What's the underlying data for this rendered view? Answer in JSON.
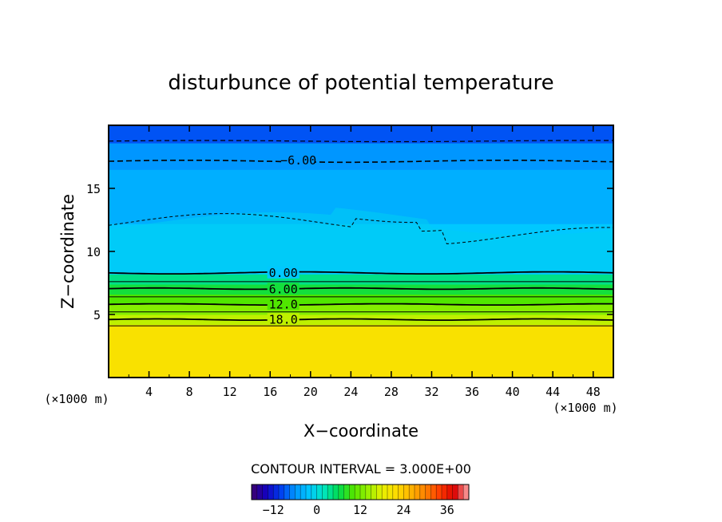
{
  "chart_data": {
    "type": "heatmap",
    "title": "disturbunce of potential temperature",
    "xlabel": "X−coordinate",
    "ylabel": "Z−coordinate",
    "x_unit": "(×1000 m)",
    "y_unit": "(×1000 m)",
    "xlim": [
      0,
      50
    ],
    "ylim": [
      0,
      20
    ],
    "x_ticks": [
      "4",
      "8",
      "12",
      "16",
      "20",
      "24",
      "28",
      "32",
      "36",
      "40",
      "44",
      "48"
    ],
    "y_ticks": [
      "5",
      "10",
      "15"
    ],
    "contour_interval_label": "CONTOUR INTERVAL = 3.000E+00",
    "colorbar": {
      "min": -18,
      "max": 42,
      "tick_labels": [
        "−12",
        "0",
        "12",
        "24",
        "36"
      ],
      "tick_values": [
        -12,
        0,
        12,
        24,
        36
      ]
    },
    "contour_labels": [
      {
        "text": "−6.00",
        "value": -6,
        "x": 18.8,
        "z": 17.2
      },
      {
        "text": "0.00",
        "value": 0,
        "x": 17.3,
        "z": 8.3
      },
      {
        "text": "6.00",
        "value": 6,
        "x": 17.3,
        "z": 7.0
      },
      {
        "text": "12.0",
        "value": 12,
        "x": 17.3,
        "z": 5.8
      },
      {
        "text": "18.0",
        "value": 18,
        "x": 17.3,
        "z": 4.6
      }
    ],
    "field_bands": [
      {
        "z_from": 0,
        "z_to": 4.2,
        "value": 21
      },
      {
        "z_from": 4.2,
        "z_to": 5.0,
        "value": 16
      },
      {
        "z_from": 5.0,
        "z_to": 5.8,
        "value": 13
      },
      {
        "z_from": 5.8,
        "z_to": 6.6,
        "value": 10
      },
      {
        "z_from": 6.6,
        "z_to": 7.4,
        "value": 7
      },
      {
        "z_from": 7.4,
        "z_to": 8.2,
        "value": 4
      },
      {
        "z_from": 8.2,
        "z_to": 12.2,
        "value": -2
      },
      {
        "z_from": 12.2,
        "z_to": 16.5,
        "value": -4
      },
      {
        "z_from": 16.5,
        "z_to": 18.6,
        "value": -6
      },
      {
        "z_from": 18.6,
        "z_to": 20,
        "value": -9
      }
    ]
  }
}
